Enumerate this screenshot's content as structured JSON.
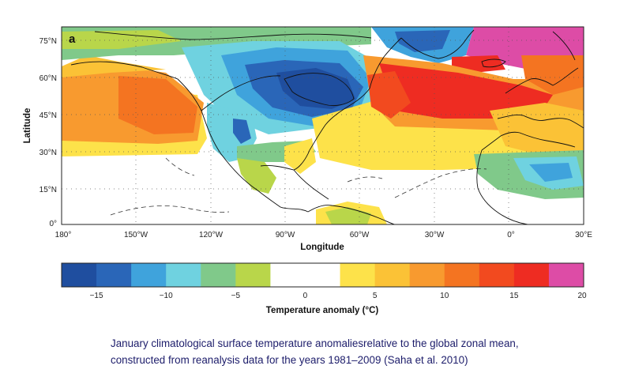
{
  "panel_label": "a",
  "map": {
    "ylabel": "Latitude",
    "xlabel": "Longitude",
    "lon_ticks": [
      "180°",
      "150°W",
      "120°W",
      "90°W",
      "60°W",
      "30°W",
      "0°",
      "30°E"
    ],
    "lat_ticks": [
      "75°N",
      "60°N",
      "45°N",
      "30°N",
      "15°N",
      "0°"
    ]
  },
  "colorbar": {
    "title": "Temperature anomaly (°C)",
    "tick_labels": [
      "−15",
      "−10",
      "−5",
      "0",
      "5",
      "10",
      "15",
      "20"
    ],
    "range": [
      -17.5,
      20
    ],
    "step": 2.5,
    "colors": [
      "#1f4e9f",
      "#2a66b8",
      "#3fa3dc",
      "#6fd2e0",
      "#80c98a",
      "#b9d64a",
      "#ffffff",
      "#ffffff",
      "#fde24a",
      "#fbc236",
      "#f89a2f",
      "#f47421",
      "#f24a1f",
      "#ee2c22",
      "#dd4ca6"
    ]
  },
  "caption": {
    "line1": "January climatological surface temperature anomaliesrelative to the global zonal mean,",
    "line2": "constructed from reanalysis data for the years 1981–2009  (Saha et al. 2010)"
  }
}
